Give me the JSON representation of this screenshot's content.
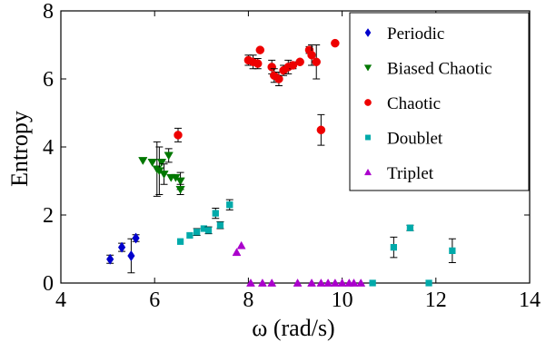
{
  "chart_data": {
    "type": "scatter",
    "xlabel": "ω (rad/s)",
    "ylabel": "Entropy",
    "xlim": [
      4,
      14
    ],
    "ylim": [
      0,
      8
    ],
    "xticks": [
      "4",
      "6",
      "8",
      "10",
      "12",
      "14"
    ],
    "yticks": [
      "0",
      "2",
      "4",
      "6",
      "8"
    ],
    "grid": false,
    "legend_position": "top-right",
    "series": [
      {
        "name": "Periodic",
        "marker": "diamond",
        "color": "#0000cc",
        "points": [
          {
            "x": 5.05,
            "y": 0.7,
            "err": 0.12
          },
          {
            "x": 5.3,
            "y": 1.05,
            "err": 0.12
          },
          {
            "x": 5.5,
            "y": 0.8,
            "err": 0.5
          },
          {
            "x": 5.6,
            "y": 1.32,
            "err": 0.1
          }
        ]
      },
      {
        "name": "Biased Chaotic",
        "marker": "triangle-down",
        "color": "#007700",
        "points": [
          {
            "x": 5.75,
            "y": 3.6,
            "err": 0
          },
          {
            "x": 5.95,
            "y": 3.55,
            "err": 0
          },
          {
            "x": 6.05,
            "y": 3.35,
            "err": 0.8
          },
          {
            "x": 6.1,
            "y": 3.3,
            "err": 0.7
          },
          {
            "x": 6.15,
            "y": 3.55,
            "err": 0
          },
          {
            "x": 6.2,
            "y": 3.2,
            "err": 0.3
          },
          {
            "x": 6.3,
            "y": 3.75,
            "err": 0.2
          },
          {
            "x": 6.35,
            "y": 3.1,
            "err": 0
          },
          {
            "x": 6.45,
            "y": 3.1,
            "err": 0
          },
          {
            "x": 6.55,
            "y": 3.0,
            "err": 0.25
          },
          {
            "x": 6.55,
            "y": 2.75,
            "err": 0.15
          }
        ]
      },
      {
        "name": "Chaotic",
        "marker": "circle",
        "color": "#ee0000",
        "points": [
          {
            "x": 6.5,
            "y": 4.35,
            "err": 0.2
          },
          {
            "x": 8.0,
            "y": 6.55,
            "err": 0.15
          },
          {
            "x": 8.1,
            "y": 6.5,
            "err": 0.2
          },
          {
            "x": 8.2,
            "y": 6.45,
            "err": 0.15
          },
          {
            "x": 8.25,
            "y": 6.85,
            "err": 0
          },
          {
            "x": 8.5,
            "y": 6.35,
            "err": 0.2
          },
          {
            "x": 8.55,
            "y": 6.1,
            "err": 0.2
          },
          {
            "x": 8.65,
            "y": 6.0,
            "err": 0.2
          },
          {
            "x": 8.75,
            "y": 6.25,
            "err": 0.15
          },
          {
            "x": 8.85,
            "y": 6.35,
            "err": 0.2
          },
          {
            "x": 8.95,
            "y": 6.4,
            "err": 0.1
          },
          {
            "x": 9.1,
            "y": 6.5,
            "err": 0
          },
          {
            "x": 9.3,
            "y": 6.85,
            "err": 0.1
          },
          {
            "x": 9.35,
            "y": 6.7,
            "err": 0.3
          },
          {
            "x": 9.45,
            "y": 6.5,
            "err": 0.5
          },
          {
            "x": 9.55,
            "y": 4.5,
            "err": 0.45
          },
          {
            "x": 9.85,
            "y": 7.05,
            "err": 0
          }
        ]
      },
      {
        "name": "Doublet",
        "marker": "square",
        "color": "#00aaaa",
        "points": [
          {
            "x": 6.55,
            "y": 1.22,
            "err": 0
          },
          {
            "x": 6.75,
            "y": 1.4,
            "err": 0
          },
          {
            "x": 6.9,
            "y": 1.5,
            "err": 0.1
          },
          {
            "x": 7.05,
            "y": 1.6,
            "err": 0
          },
          {
            "x": 7.15,
            "y": 1.55,
            "err": 0.1
          },
          {
            "x": 7.3,
            "y": 2.05,
            "err": 0.15
          },
          {
            "x": 7.4,
            "y": 1.7,
            "err": 0.1
          },
          {
            "x": 7.6,
            "y": 2.3,
            "err": 0.15
          },
          {
            "x": 10.65,
            "y": 0.0,
            "err": 0
          },
          {
            "x": 11.1,
            "y": 1.05,
            "err": 0.3
          },
          {
            "x": 11.45,
            "y": 1.62,
            "err": 0.08
          },
          {
            "x": 11.85,
            "y": 0.0,
            "err": 0
          },
          {
            "x": 12.35,
            "y": 0.95,
            "err": 0.35
          }
        ]
      },
      {
        "name": "Triplet",
        "marker": "triangle-up",
        "color": "#aa00cc",
        "points": [
          {
            "x": 7.75,
            "y": 0.9,
            "err": 0
          },
          {
            "x": 7.85,
            "y": 1.1,
            "err": 0
          },
          {
            "x": 8.05,
            "y": 0.0,
            "err": 0
          },
          {
            "x": 8.3,
            "y": 0.0,
            "err": 0
          },
          {
            "x": 8.5,
            "y": 0.0,
            "err": 0
          },
          {
            "x": 9.05,
            "y": 0.0,
            "err": 0
          },
          {
            "x": 9.35,
            "y": 0.0,
            "err": 0
          },
          {
            "x": 9.55,
            "y": 0.0,
            "err": 0
          },
          {
            "x": 9.7,
            "y": 0.0,
            "err": 0
          },
          {
            "x": 9.85,
            "y": 0.0,
            "err": 0
          },
          {
            "x": 10.0,
            "y": 0.0,
            "err": 0
          },
          {
            "x": 10.15,
            "y": 0.0,
            "err": 0
          },
          {
            "x": 10.25,
            "y": 0.0,
            "err": 0
          },
          {
            "x": 10.4,
            "y": 0.0,
            "err": 0
          }
        ]
      }
    ]
  }
}
